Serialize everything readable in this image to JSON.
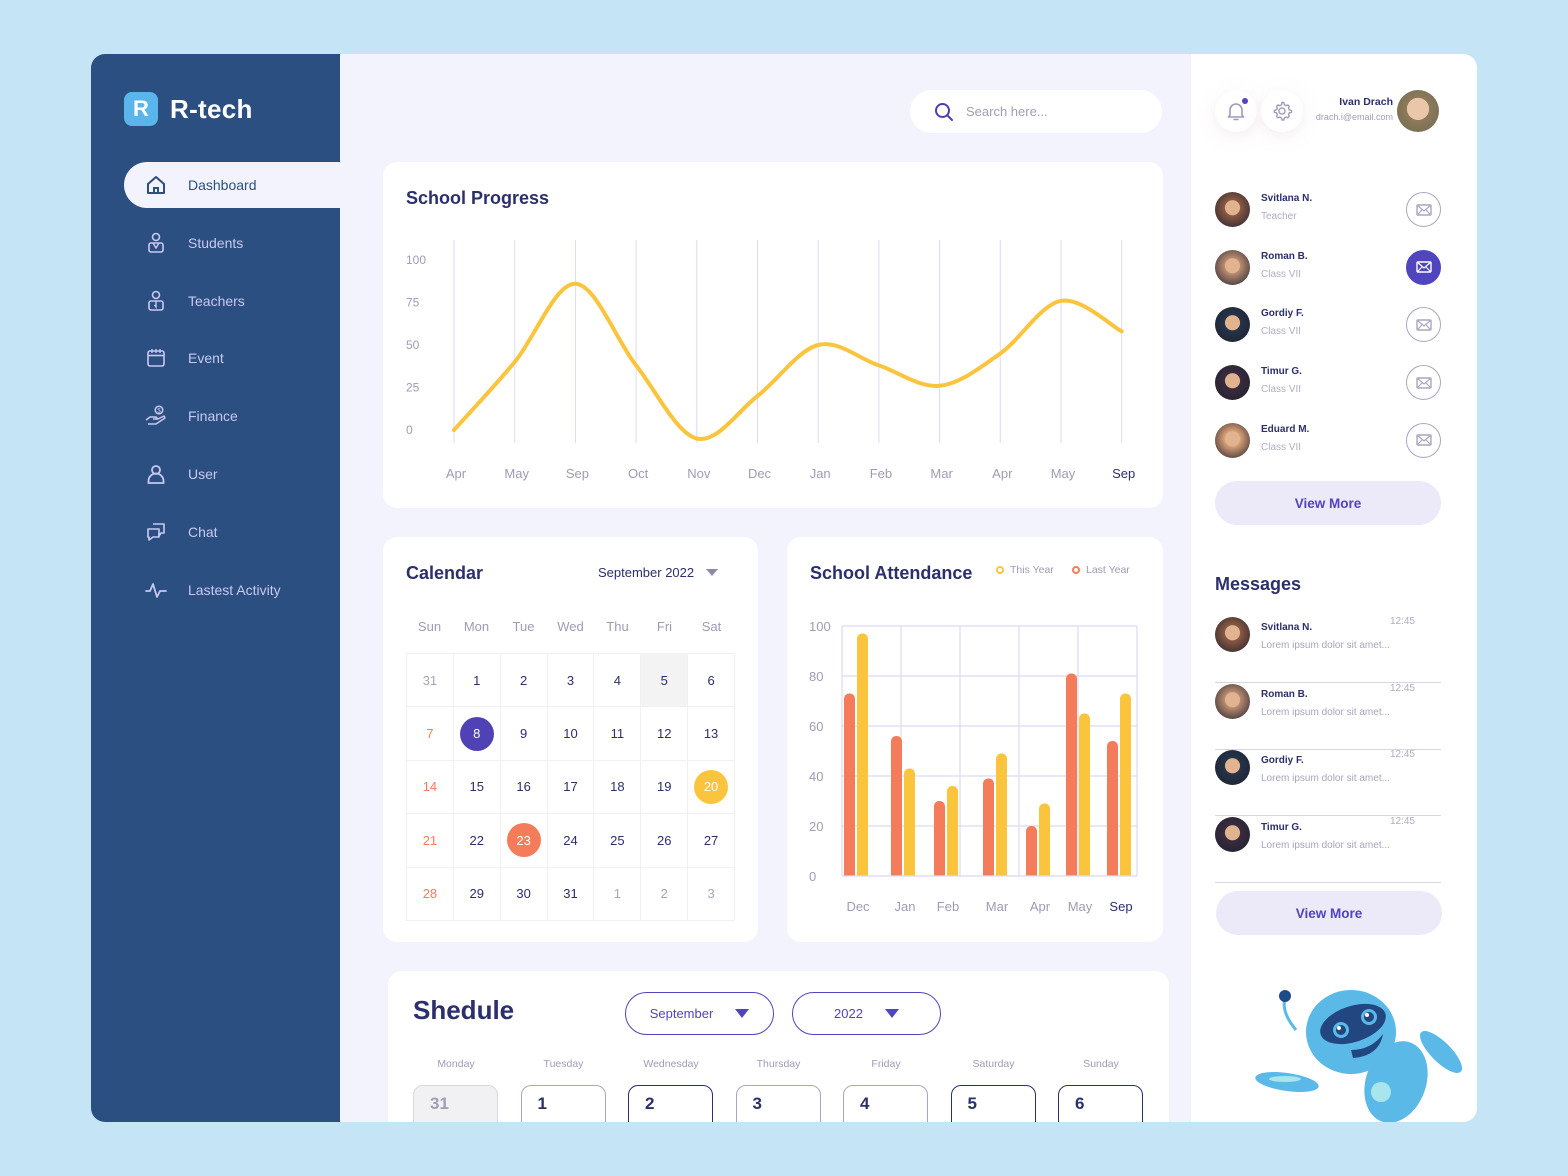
{
  "app": {
    "logo_letter": "R",
    "name": "R-tech"
  },
  "sidebar": {
    "items": [
      {
        "label": "Dashboard",
        "icon": "home-icon",
        "active": true
      },
      {
        "label": "Students",
        "icon": "student-icon"
      },
      {
        "label": "Teachers",
        "icon": "teacher-icon"
      },
      {
        "label": "Event",
        "icon": "calendar-icon"
      },
      {
        "label": "Finance",
        "icon": "finance-icon"
      },
      {
        "label": "User",
        "icon": "user-icon"
      },
      {
        "label": "Chat",
        "icon": "chat-icon"
      },
      {
        "label": "Lastest Activity",
        "icon": "activity-icon"
      }
    ]
  },
  "search": {
    "placeholder": "Search here..."
  },
  "header": {
    "user_name": "Ivan Drach",
    "user_email": "drach.i@email.com",
    "notification_dot_color": "#5144bf"
  },
  "progress": {
    "title": "School Progress"
  },
  "calendar": {
    "title": "Calendar",
    "selected_month": "September 2022",
    "weekdays": [
      "Sun",
      "Mon",
      "Tue",
      "Wed",
      "Thu",
      "Fri",
      "Sat"
    ],
    "days": [
      {
        "d": "31",
        "t": "muted"
      },
      {
        "d": "1"
      },
      {
        "d": "2"
      },
      {
        "d": "3"
      },
      {
        "d": "4"
      },
      {
        "d": "5",
        "t": "shade"
      },
      {
        "d": "6"
      },
      {
        "d": "7",
        "t": "sun"
      },
      {
        "d": "8",
        "mark": "#4f42b5"
      },
      {
        "d": "9"
      },
      {
        "d": "10"
      },
      {
        "d": "11"
      },
      {
        "d": "12"
      },
      {
        "d": "13"
      },
      {
        "d": "14",
        "t": "sun"
      },
      {
        "d": "15"
      },
      {
        "d": "16"
      },
      {
        "d": "17"
      },
      {
        "d": "18"
      },
      {
        "d": "19"
      },
      {
        "d": "20",
        "mark": "#fbc43d"
      },
      {
        "d": "21",
        "t": "sun"
      },
      {
        "d": "22"
      },
      {
        "d": "23",
        "mark": "#f47c5a"
      },
      {
        "d": "24"
      },
      {
        "d": "25"
      },
      {
        "d": "26"
      },
      {
        "d": "27"
      },
      {
        "d": "28",
        "t": "sun"
      },
      {
        "d": "29"
      },
      {
        "d": "30"
      },
      {
        "d": "31"
      },
      {
        "d": "1",
        "t": "muted"
      },
      {
        "d": "2",
        "t": "muted"
      },
      {
        "d": "3",
        "t": "muted"
      }
    ]
  },
  "attendance": {
    "title": "School Attendance",
    "legend_this": "This Year",
    "legend_last": "Last Year"
  },
  "schedule": {
    "title": "Shedule",
    "month": "September",
    "year": "2022",
    "days": [
      {
        "name": "Monday",
        "num": "31",
        "state": "muted"
      },
      {
        "name": "Tuesday",
        "num": "1"
      },
      {
        "name": "Wednesday",
        "num": "2",
        "state": "strong"
      },
      {
        "name": "Thursday",
        "num": "3"
      },
      {
        "name": "Friday",
        "num": "4"
      },
      {
        "name": "Saturday",
        "num": "5",
        "state": "strong"
      },
      {
        "name": "Sunday",
        "num": "6",
        "state": "strong"
      }
    ]
  },
  "contacts": [
    {
      "name": "Svitlana N.",
      "role": "Teacher",
      "color": "#8a5a44",
      "active": false
    },
    {
      "name": "Roman B.",
      "role": "Class VII",
      "color": "#b98c72",
      "active": true
    },
    {
      "name": "Gordiy F.",
      "role": "Class VII",
      "color": "#24344a",
      "active": false
    },
    {
      "name": "Timur G.",
      "role": "Class VII",
      "color": "#3a2c3f",
      "active": false
    },
    {
      "name": "Eduard M.",
      "role": "Class VII",
      "color": "#d8a077",
      "active": false
    }
  ],
  "view_more_label": "View More",
  "messages": {
    "title": "Messages",
    "items": [
      {
        "name": "Svitlana N.",
        "text": "Lorem ipsum dolor sit amet...",
        "time": "12:45",
        "color": "#8a5a44"
      },
      {
        "name": "Roman B.",
        "text": "Lorem ipsum dolor sit amet...",
        "time": "12:45",
        "color": "#b98c72"
      },
      {
        "name": "Gordiy F.",
        "text": "Lorem ipsum dolor sit amet...",
        "time": "12:45",
        "color": "#24344a"
      },
      {
        "name": "Timur G.",
        "text": "Lorem ipsum dolor sit amet...",
        "time": "12:45",
        "color": "#3a2c3f"
      }
    ]
  },
  "colors": {
    "sidebar": "#2b4f80",
    "accent": "#5144bf",
    "yellow": "#fbc43d",
    "orange": "#f47c5a",
    "text": "#2b2f6b"
  },
  "chart_data": [
    {
      "type": "line",
      "title": "School Progress",
      "categories": [
        "Apr",
        "May",
        "Sep",
        "Oct",
        "Nov",
        "Dec",
        "Jan",
        "Feb",
        "Mar",
        "Apr",
        "May",
        "Sep"
      ],
      "series": [
        {
          "name": "Progress",
          "color": "#fbc43d",
          "values": [
            0,
            40,
            86,
            38,
            -5,
            20,
            50,
            38,
            26,
            45,
            76,
            58
          ]
        }
      ],
      "yticks": [
        0,
        25,
        50,
        75,
        100
      ],
      "ylim": [
        0,
        100
      ],
      "grid": "vertical",
      "highlight_label": "Sep"
    },
    {
      "type": "bar",
      "title": "School Attendance",
      "categories": [
        "Dec",
        "Jan",
        "Feb",
        "Mar",
        "Apr",
        "May",
        "Sep"
      ],
      "series": [
        {
          "name": "Last Year",
          "color": "#f47c5a",
          "values": [
            73,
            56,
            30,
            39,
            20,
            81,
            54
          ]
        },
        {
          "name": "This Year",
          "color": "#fbc43d",
          "values": [
            97,
            43,
            36,
            49,
            29,
            65,
            73
          ]
        }
      ],
      "yticks": [
        0,
        20,
        40,
        60,
        80,
        100
      ],
      "ylim": [
        0,
        100
      ],
      "legend_position": "top-right",
      "grid": true
    }
  ]
}
